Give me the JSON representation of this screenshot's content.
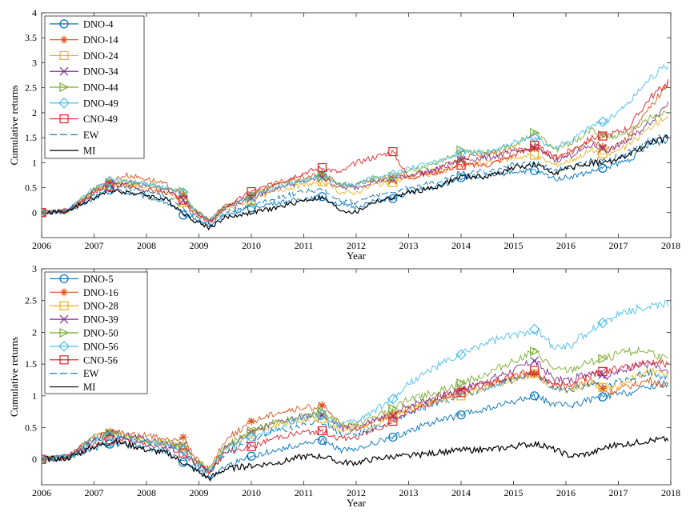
{
  "chart_data": [
    {
      "type": "line",
      "xlabel": "Year",
      "ylabel": "Cumulative returns",
      "xlim": [
        2006,
        2018
      ],
      "ylim": [
        -0.5,
        4
      ],
      "xticks": [
        2006,
        2007,
        2008,
        2009,
        2010,
        2011,
        2012,
        2013,
        2014,
        2015,
        2016,
        2017,
        2018
      ],
      "yticks": [
        0,
        0.5,
        1,
        1.5,
        2,
        2.5,
        3,
        3.5,
        4
      ],
      "ytick_labels": [
        "0",
        "0.5",
        "1",
        "1.5",
        "2",
        "2.5",
        "3",
        "3.5",
        "4"
      ],
      "grid": false,
      "legend_position": "top-left",
      "x": [
        2006.0,
        2006.5,
        2007.0,
        2007.35,
        2007.6,
        2008.0,
        2008.4,
        2008.7,
        2008.9,
        2009.2,
        2009.5,
        2010.0,
        2010.5,
        2011.0,
        2011.35,
        2011.7,
        2012.0,
        2012.3,
        2012.7,
        2013.0,
        2013.5,
        2014.0,
        2014.5,
        2015.0,
        2015.4,
        2015.8,
        2016.1,
        2016.5,
        2016.8,
        2017.2,
        2017.6,
        2017.95
      ],
      "series": [
        {
          "name": "DNO-4",
          "color": "#0072BD",
          "marker": "circle",
          "dashed": false,
          "values": [
            0.0,
            0.02,
            0.28,
            0.48,
            0.4,
            0.32,
            0.2,
            -0.05,
            -0.1,
            -0.28,
            -0.05,
            0.1,
            0.2,
            0.28,
            0.32,
            0.15,
            0.1,
            0.22,
            0.28,
            0.4,
            0.5,
            0.7,
            0.72,
            0.82,
            0.84,
            0.68,
            0.72,
            0.82,
            0.92,
            1.05,
            1.35,
            1.45
          ]
        },
        {
          "name": "DNO-14",
          "color": "#D95319",
          "marker": "asterisk",
          "dashed": false,
          "values": [
            0.0,
            0.05,
            0.45,
            0.65,
            0.75,
            0.68,
            0.55,
            0.35,
            0.05,
            -0.15,
            0.15,
            0.35,
            0.6,
            0.7,
            0.78,
            0.55,
            0.55,
            0.65,
            0.68,
            0.75,
            0.85,
            1.1,
            1.15,
            1.25,
            1.3,
            1.1,
            1.2,
            1.45,
            1.25,
            1.5,
            2.1,
            2.6
          ]
        },
        {
          "name": "DNO-24",
          "color": "#EDB120",
          "marker": "square",
          "dashed": false,
          "values": [
            0.0,
            0.03,
            0.42,
            0.55,
            0.55,
            0.5,
            0.4,
            0.2,
            0.0,
            -0.2,
            0.05,
            0.25,
            0.45,
            0.55,
            0.62,
            0.4,
            0.4,
            0.55,
            0.6,
            0.7,
            0.78,
            0.95,
            1.0,
            1.1,
            1.15,
            0.95,
            1.05,
            1.25,
            1.15,
            1.35,
            1.7,
            1.95
          ]
        },
        {
          "name": "DNO-34",
          "color": "#7E2F8E",
          "marker": "x",
          "dashed": false,
          "values": [
            0.0,
            0.04,
            0.45,
            0.6,
            0.6,
            0.55,
            0.45,
            0.25,
            0.05,
            -0.18,
            0.1,
            0.3,
            0.5,
            0.62,
            0.7,
            0.5,
            0.5,
            0.62,
            0.66,
            0.75,
            0.85,
            1.05,
            1.1,
            1.2,
            1.3,
            1.05,
            1.15,
            1.35,
            1.25,
            1.45,
            1.8,
            2.2
          ]
        },
        {
          "name": "DNO-44",
          "color": "#77AC30",
          "marker": "triangle-right",
          "dashed": false,
          "values": [
            0.0,
            0.04,
            0.48,
            0.62,
            0.62,
            0.58,
            0.48,
            0.42,
            0.08,
            -0.15,
            0.12,
            0.35,
            0.55,
            0.65,
            0.72,
            0.55,
            0.55,
            0.68,
            0.72,
            0.85,
            0.95,
            1.25,
            1.2,
            1.35,
            1.6,
            1.25,
            1.4,
            1.65,
            1.5,
            1.6,
            1.9,
            2.05
          ]
        },
        {
          "name": "DNO-49",
          "color": "#4DBEEE",
          "marker": "diamond",
          "dashed": false,
          "values": [
            0.0,
            0.04,
            0.5,
            0.65,
            0.6,
            0.58,
            0.5,
            0.4,
            0.05,
            -0.15,
            0.12,
            0.3,
            0.5,
            0.65,
            0.75,
            0.58,
            0.55,
            0.7,
            0.75,
            0.9,
            1.0,
            1.2,
            1.22,
            1.4,
            1.5,
            1.3,
            1.45,
            1.75,
            1.85,
            2.2,
            2.7,
            2.95
          ]
        },
        {
          "name": "CNO-49",
          "color": "#E5202A",
          "marker": "square",
          "dashed": false,
          "values": [
            0.0,
            0.03,
            0.4,
            0.55,
            0.55,
            0.45,
            0.4,
            0.25,
            0.0,
            -0.2,
            0.1,
            0.42,
            0.6,
            0.8,
            0.9,
            0.8,
            1.0,
            1.1,
            1.22,
            0.7,
            0.8,
            0.95,
            0.95,
            1.15,
            1.35,
            1.1,
            1.25,
            1.5,
            1.55,
            1.7,
            2.3,
            2.6
          ]
        },
        {
          "name": "EW",
          "color": "#0072BD",
          "marker": "none",
          "dashed": true,
          "values": [
            0.0,
            0.03,
            0.35,
            0.5,
            0.48,
            0.42,
            0.3,
            0.1,
            -0.05,
            -0.25,
            0.0,
            0.15,
            0.3,
            0.42,
            0.45,
            0.25,
            0.2,
            0.35,
            0.4,
            0.5,
            0.6,
            0.8,
            0.82,
            0.95,
            1.0,
            0.85,
            0.9,
            1.05,
            1.05,
            1.2,
            1.45,
            1.55
          ]
        },
        {
          "name": "MI",
          "color": "#000000",
          "marker": "none",
          "dashed": false,
          "values": [
            0.0,
            0.02,
            0.3,
            0.45,
            0.42,
            0.35,
            0.25,
            0.0,
            -0.15,
            -0.3,
            -0.1,
            0.0,
            0.1,
            0.25,
            0.3,
            0.05,
            0.0,
            0.2,
            0.3,
            0.4,
            0.5,
            0.72,
            0.72,
            0.9,
            0.95,
            0.8,
            0.9,
            1.0,
            1.0,
            1.15,
            1.4,
            1.5
          ]
        }
      ],
      "markers_x": [
        2006.0,
        2007.3,
        2008.7,
        2010.0,
        2011.35,
        2012.7,
        2014.0,
        2015.4,
        2016.7,
        2018.0
      ]
    },
    {
      "type": "line",
      "xlabel": "Year",
      "ylabel": "Cumulative returns",
      "xlim": [
        2006,
        2018
      ],
      "ylim": [
        -0.4,
        3
      ],
      "xticks": [
        2006,
        2007,
        2008,
        2009,
        2010,
        2011,
        2012,
        2013,
        2014,
        2015,
        2016,
        2017,
        2018
      ],
      "yticks": [
        0,
        0.5,
        1,
        1.5,
        2,
        2.5,
        3
      ],
      "ytick_labels": [
        "0",
        "0.5",
        "1",
        "1.5",
        "2",
        "2.5",
        "3"
      ],
      "grid": false,
      "legend_position": "top-left",
      "x": [
        2006.0,
        2006.5,
        2007.0,
        2007.35,
        2007.6,
        2008.0,
        2008.4,
        2008.7,
        2008.9,
        2009.2,
        2009.5,
        2010.0,
        2010.5,
        2011.0,
        2011.35,
        2011.7,
        2012.0,
        2012.3,
        2012.7,
        2013.0,
        2013.5,
        2014.0,
        2014.5,
        2015.0,
        2015.4,
        2015.8,
        2016.1,
        2016.5,
        2016.8,
        2017.2,
        2017.6,
        2017.95
      ],
      "series": [
        {
          "name": "DNO-5",
          "color": "#0072BD",
          "marker": "circle",
          "dashed": false,
          "values": [
            0.0,
            0.02,
            0.18,
            0.25,
            0.22,
            0.18,
            0.12,
            -0.05,
            -0.1,
            -0.3,
            -0.1,
            0.05,
            0.15,
            0.25,
            0.3,
            0.15,
            0.15,
            0.25,
            0.35,
            0.45,
            0.6,
            0.7,
            0.8,
            0.9,
            1.0,
            0.85,
            0.85,
            0.95,
            1.0,
            1.05,
            1.15,
            1.2
          ]
        },
        {
          "name": "DNO-16",
          "color": "#D95319",
          "marker": "asterisk",
          "dashed": false,
          "values": [
            0.0,
            0.05,
            0.35,
            0.45,
            0.4,
            0.38,
            0.3,
            0.35,
            0.05,
            -0.15,
            0.3,
            0.6,
            0.75,
            0.8,
            0.85,
            0.55,
            0.5,
            0.6,
            0.7,
            0.8,
            0.95,
            1.1,
            1.2,
            1.3,
            1.35,
            1.15,
            1.15,
            1.25,
            1.05,
            1.15,
            1.25,
            1.15
          ]
        },
        {
          "name": "DNO-28",
          "color": "#EDB120",
          "marker": "square",
          "dashed": false,
          "values": [
            0.0,
            0.04,
            0.32,
            0.42,
            0.38,
            0.3,
            0.25,
            0.2,
            0.0,
            -0.2,
            0.15,
            0.4,
            0.55,
            0.62,
            0.65,
            0.45,
            0.45,
            0.55,
            0.65,
            0.8,
            0.9,
            1.0,
            1.15,
            1.25,
            1.35,
            1.1,
            1.1,
            1.2,
            1.1,
            1.25,
            1.4,
            1.3
          ]
        },
        {
          "name": "DNO-39",
          "color": "#7E2F8E",
          "marker": "x",
          "dashed": false,
          "values": [
            0.0,
            0.04,
            0.33,
            0.42,
            0.38,
            0.32,
            0.25,
            0.22,
            0.0,
            -0.18,
            0.18,
            0.42,
            0.58,
            0.68,
            0.7,
            0.5,
            0.48,
            0.6,
            0.68,
            0.85,
            0.98,
            1.1,
            1.25,
            1.4,
            1.55,
            1.25,
            1.25,
            1.4,
            1.3,
            1.45,
            1.5,
            1.35
          ]
        },
        {
          "name": "DNO-50",
          "color": "#77AC30",
          "marker": "triangle-right",
          "dashed": false,
          "values": [
            0.0,
            0.04,
            0.35,
            0.42,
            0.38,
            0.3,
            0.25,
            0.2,
            0.0,
            -0.15,
            0.2,
            0.45,
            0.6,
            0.7,
            0.75,
            0.55,
            0.55,
            0.65,
            0.8,
            0.95,
            1.05,
            1.2,
            1.35,
            1.55,
            1.7,
            1.4,
            1.4,
            1.55,
            1.6,
            1.7,
            1.7,
            1.55
          ]
        },
        {
          "name": "DNO-56",
          "color": "#4DBEEE",
          "marker": "diamond",
          "dashed": false,
          "values": [
            0.0,
            0.04,
            0.3,
            0.38,
            0.35,
            0.28,
            0.22,
            0.15,
            -0.05,
            -0.2,
            0.15,
            0.35,
            0.5,
            0.65,
            0.7,
            0.55,
            0.6,
            0.75,
            0.95,
            1.2,
            1.45,
            1.65,
            1.85,
            1.95,
            2.05,
            1.75,
            1.8,
            2.05,
            2.2,
            2.35,
            2.4,
            2.45
          ]
        },
        {
          "name": "CNO-56",
          "color": "#E5202A",
          "marker": "square",
          "dashed": false,
          "values": [
            0.0,
            0.03,
            0.25,
            0.32,
            0.3,
            0.22,
            0.18,
            0.1,
            -0.05,
            -0.2,
            0.1,
            0.2,
            0.35,
            0.42,
            0.45,
            0.32,
            0.35,
            0.45,
            0.6,
            0.75,
            0.9,
            1.05,
            1.2,
            1.3,
            1.4,
            1.15,
            1.2,
            1.35,
            1.4,
            1.45,
            1.55,
            1.5
          ]
        },
        {
          "name": "EW",
          "color": "#0072BD",
          "marker": "none",
          "dashed": true,
          "values": [
            0.0,
            0.03,
            0.28,
            0.35,
            0.32,
            0.25,
            0.2,
            0.1,
            -0.05,
            -0.22,
            0.1,
            0.3,
            0.45,
            0.55,
            0.6,
            0.4,
            0.4,
            0.5,
            0.6,
            0.75,
            0.88,
            1.0,
            1.12,
            1.25,
            1.35,
            1.1,
            1.1,
            1.2,
            1.15,
            1.3,
            1.35,
            1.3
          ]
        },
        {
          "name": "MI",
          "color": "#000000",
          "marker": "none",
          "dashed": false,
          "values": [
            0.0,
            0.02,
            0.2,
            0.28,
            0.25,
            0.15,
            0.1,
            -0.05,
            -0.15,
            -0.3,
            -0.15,
            -0.1,
            -0.05,
            0.05,
            0.05,
            -0.05,
            -0.05,
            0.0,
            0.05,
            0.05,
            0.1,
            0.15,
            0.15,
            0.2,
            0.25,
            0.15,
            0.05,
            0.1,
            0.2,
            0.25,
            0.3,
            0.32
          ]
        }
      ],
      "markers_x": [
        2006.0,
        2007.3,
        2008.7,
        2010.0,
        2011.35,
        2012.7,
        2014.0,
        2015.4,
        2016.7,
        2018.0
      ]
    }
  ]
}
